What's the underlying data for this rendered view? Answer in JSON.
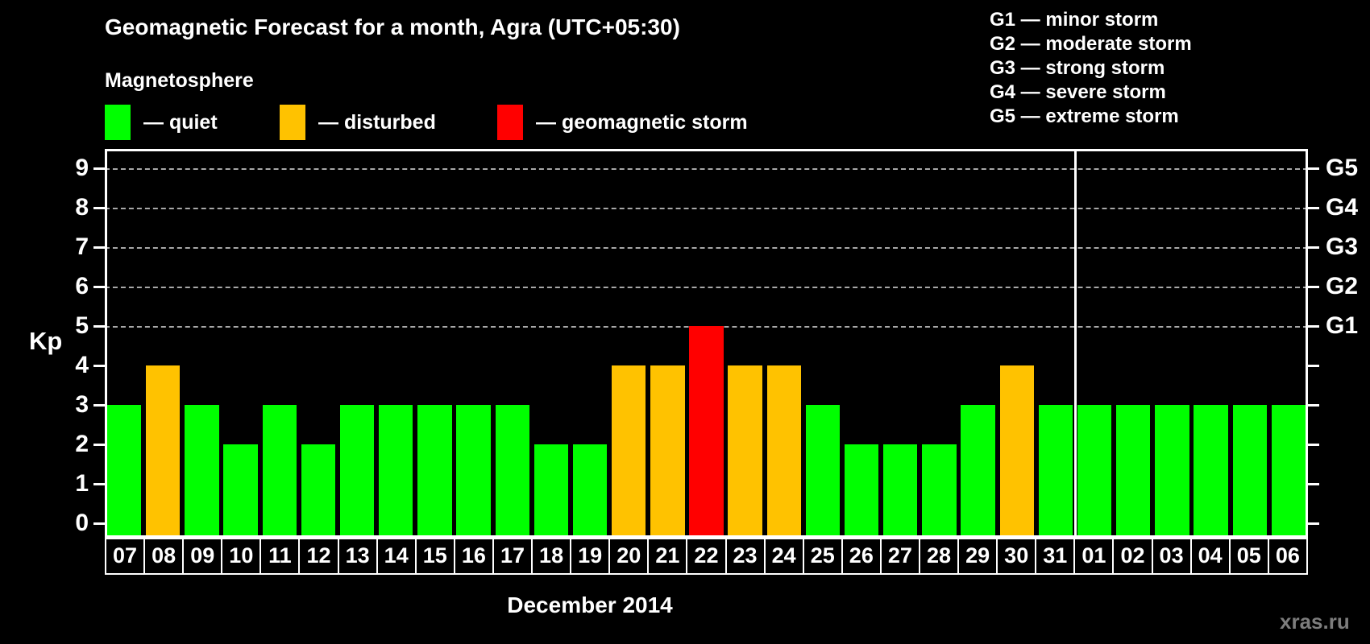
{
  "header": {
    "title": "Geomagnetic Forecast for a month, Agra (UTC+05:30)"
  },
  "legend": {
    "heading": "Magnetosphere",
    "items": [
      {
        "key": "quiet",
        "label": "— quiet",
        "color": "#00ff00"
      },
      {
        "key": "disturbed",
        "label": "— disturbed",
        "color": "#ffc200"
      },
      {
        "key": "storm",
        "label": "— geomagnetic storm",
        "color": "#ff0000"
      }
    ]
  },
  "g_legend": {
    "items": [
      "G1 — minor storm",
      "G2 — moderate storm",
      "G3 — strong storm",
      "G4 — severe storm",
      "G5 — extreme storm"
    ]
  },
  "watermark": {
    "text": "xras.ru"
  },
  "colors": {
    "quiet": "#00ff00",
    "disturbed": "#ffc200",
    "storm": "#ff0000",
    "background": "#000000",
    "axis": "#ffffff",
    "grid": "#a8a8a8",
    "watermark": "#7d7d7d"
  },
  "chart_data": {
    "type": "bar",
    "title": "Geomagnetic Forecast for a month, Agra (UTC+05:30)",
    "xlabel": "December 2014",
    "ylabel": "Kp",
    "ylim": [
      0,
      9
    ],
    "y_tick_labels": [
      "0",
      "1",
      "2",
      "3",
      "4",
      "5",
      "6",
      "7",
      "8",
      "9"
    ],
    "right_axis_labels": [
      {
        "kp": 5,
        "label": "G1"
      },
      {
        "kp": 6,
        "label": "G2"
      },
      {
        "kp": 7,
        "label": "G3"
      },
      {
        "kp": 8,
        "label": "G4"
      },
      {
        "kp": 9,
        "label": "G5"
      }
    ],
    "gridlines_at": [
      5,
      6,
      7,
      8,
      9
    ],
    "month_divider_after_index": 24,
    "bars": [
      {
        "date": "07",
        "kp": 3,
        "status": "quiet"
      },
      {
        "date": "08",
        "kp": 4,
        "status": "disturbed"
      },
      {
        "date": "09",
        "kp": 3,
        "status": "quiet"
      },
      {
        "date": "10",
        "kp": 2,
        "status": "quiet"
      },
      {
        "date": "11",
        "kp": 3,
        "status": "quiet"
      },
      {
        "date": "12",
        "kp": 2,
        "status": "quiet"
      },
      {
        "date": "13",
        "kp": 3,
        "status": "quiet"
      },
      {
        "date": "14",
        "kp": 3,
        "status": "quiet"
      },
      {
        "date": "15",
        "kp": 3,
        "status": "quiet"
      },
      {
        "date": "16",
        "kp": 3,
        "status": "quiet"
      },
      {
        "date": "17",
        "kp": 3,
        "status": "quiet"
      },
      {
        "date": "18",
        "kp": 2,
        "status": "quiet"
      },
      {
        "date": "19",
        "kp": 2,
        "status": "quiet"
      },
      {
        "date": "20",
        "kp": 4,
        "status": "disturbed"
      },
      {
        "date": "21",
        "kp": 4,
        "status": "disturbed"
      },
      {
        "date": "22",
        "kp": 5,
        "status": "storm"
      },
      {
        "date": "23",
        "kp": 4,
        "status": "disturbed"
      },
      {
        "date": "24",
        "kp": 4,
        "status": "disturbed"
      },
      {
        "date": "25",
        "kp": 3,
        "status": "quiet"
      },
      {
        "date": "26",
        "kp": 2,
        "status": "quiet"
      },
      {
        "date": "27",
        "kp": 2,
        "status": "quiet"
      },
      {
        "date": "28",
        "kp": 2,
        "status": "quiet"
      },
      {
        "date": "29",
        "kp": 3,
        "status": "quiet"
      },
      {
        "date": "30",
        "kp": 4,
        "status": "disturbed"
      },
      {
        "date": "31",
        "kp": 3,
        "status": "quiet"
      },
      {
        "date": "01",
        "kp": 3,
        "status": "quiet"
      },
      {
        "date": "02",
        "kp": 3,
        "status": "quiet"
      },
      {
        "date": "03",
        "kp": 3,
        "status": "quiet"
      },
      {
        "date": "04",
        "kp": 3,
        "status": "quiet"
      },
      {
        "date": "05",
        "kp": 3,
        "status": "quiet"
      },
      {
        "date": "06",
        "kp": 3,
        "status": "quiet"
      }
    ]
  }
}
